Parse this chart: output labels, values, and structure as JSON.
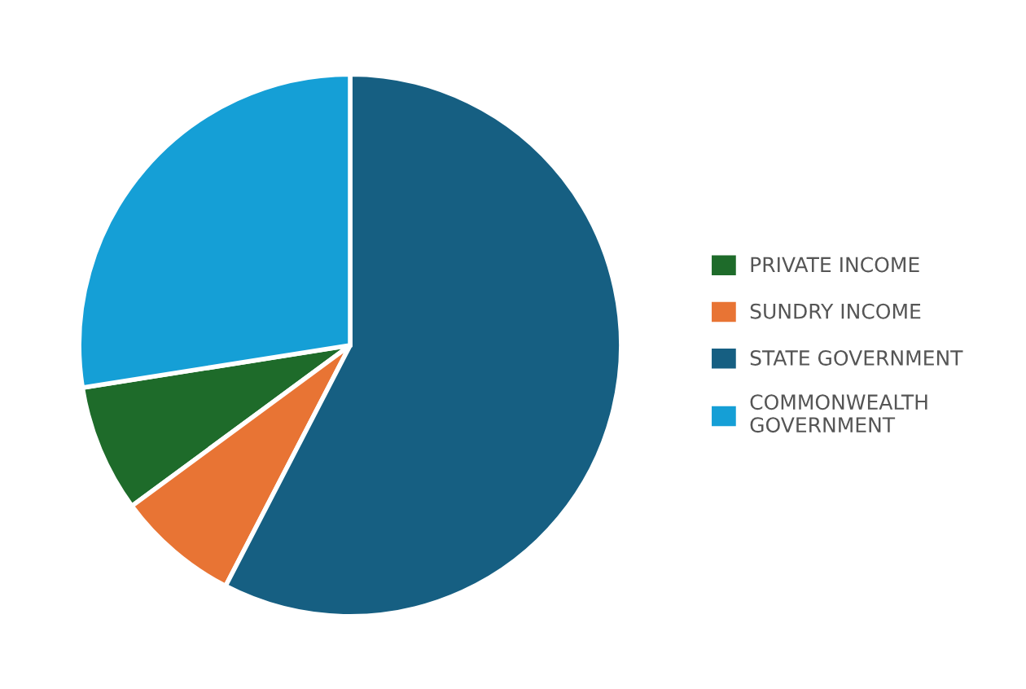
{
  "chart_data": {
    "type": "pie",
    "categories": [
      "PRIVATE INCOME",
      "SUNDRY INCOME",
      "STATE GOVERNMENT",
      "COMMONWEALTH\nGOVERNMENT"
    ],
    "values": [
      7.6,
      7.3,
      57.6,
      27.5
    ],
    "colors": [
      "#1e6b2a",
      "#e87434",
      "#165f82",
      "#159fd6"
    ],
    "legend": "right"
  }
}
